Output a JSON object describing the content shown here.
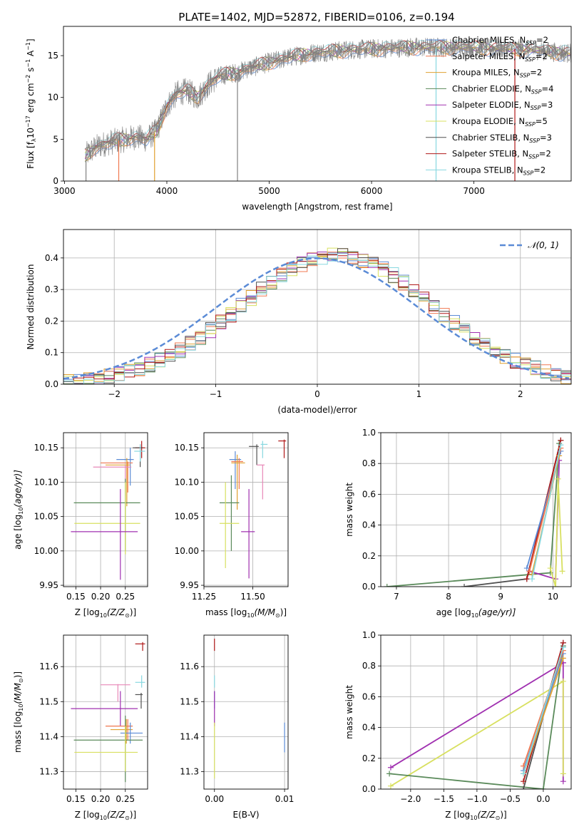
{
  "figure": {
    "title": "PLATE=1402, MJD=52872, FIBERID=0106, z=0.194"
  },
  "colors": {
    "Chabrier MILES": "#5b8bd6",
    "Salpeter MILES": "#f07850",
    "Kroupa MILES": "#e0a030",
    "Chabrier ELODIE": "#5a8a5a",
    "Salpeter ELODIE": "#a030b0",
    "Kroupa ELODIE": "#d8e060",
    "Chabrier STELIB": "#505050",
    "Salpeter STELIB": "#b01818",
    "Kroupa STELIB": "#88d8e0",
    "data": "#808080",
    "normal": "#5b8bd6",
    "extra_pink": "#e888b8"
  },
  "chart_data": [
    {
      "id": "spectrum",
      "type": "line",
      "title": "PLATE=1402, MJD=52872, FIBERID=0106, z=0.194",
      "xlabel": "wavelength [Angstrom, rest frame]",
      "ylabel_main": "Flux [f",
      "ylabel_sub": "λ",
      "ylabel_rest": "10",
      "ylabel_exp1": "−17",
      "ylabel_mid": " erg cm",
      "ylabel_exp2": "−2",
      "ylabel_mid2": " s",
      "ylabel_exp3": "−1",
      "ylabel_end": " A",
      "ylabel_exp4": "−1",
      "ylabel_close": "]",
      "xlim": [
        2990,
        7950
      ],
      "ylim": [
        0,
        18.5
      ],
      "xticks": [
        3000,
        4000,
        5000,
        6000,
        7000
      ],
      "yticks": [
        0,
        5,
        10,
        15
      ],
      "continuum": {
        "x": [
          3200,
          3300,
          3400,
          3500,
          3600,
          3700,
          3800,
          3900,
          4000,
          4100,
          4200,
          4300,
          4400,
          4500,
          4600,
          4700,
          4800,
          4900,
          5000,
          5200,
          5400,
          5600,
          5800,
          6000,
          6200,
          6400,
          6600,
          6800,
          7000,
          7200,
          7400,
          7600,
          7800,
          7950
        ],
        "y": [
          3.0,
          4.0,
          4.5,
          4.8,
          5.0,
          5.3,
          5.0,
          6.0,
          9.0,
          10.5,
          10.8,
          10.0,
          11.5,
          12.5,
          12.8,
          13.0,
          13.5,
          13.8,
          14.2,
          14.8,
          15.3,
          15.5,
          15.7,
          15.8,
          15.9,
          16.0,
          16.0,
          16.0,
          16.0,
          15.9,
          15.8,
          15.7,
          15.4,
          15.3
        ]
      },
      "series": [
        {
          "name": "Chabrier MILES",
          "nssp": "2"
        },
        {
          "name": "Salpeter MILES",
          "nssp": "2"
        },
        {
          "name": "Kroupa MILES",
          "nssp": "2"
        },
        {
          "name": "Chabrier ELODIE",
          "nssp": "4"
        },
        {
          "name": "Salpeter ELODIE",
          "nssp": "3"
        },
        {
          "name": "Kroupa ELODIE",
          "nssp": "5"
        },
        {
          "name": "Chabrier STELIB",
          "nssp": "3"
        },
        {
          "name": "Salpeter STELIB",
          "nssp": "2"
        },
        {
          "name": "Kroupa STELIB",
          "nssp": "2"
        }
      ],
      "legend_prefix": "N",
      "legend_sub": "SSP",
      "legend_placement": "right",
      "grid": false
    },
    {
      "id": "residuals",
      "type": "line",
      "xlabel": "(data-model)/error",
      "ylabel": "Normed distribution",
      "xlim": [
        -2.5,
        2.5
      ],
      "ylim": [
        0,
        0.49
      ],
      "xticks": [
        -2,
        -1,
        0,
        1,
        2
      ],
      "yticks": [
        0.0,
        0.1,
        0.2,
        0.3,
        0.4
      ],
      "legend": "𝒩(0, 1)",
      "legend_placement": "top-right",
      "grid": true
    },
    {
      "id": "age_vs_Z",
      "type": "scatter",
      "xlabel": "Z [log",
      "xlabel_sub": "10",
      "xlabel_rest": "(Z/Z",
      "xlabel_sun": "⊙",
      "xlabel_close": ")]",
      "ylabel": "age  [log",
      "ylabel_sub": "10",
      "ylabel_rest": "(age/yr)]",
      "xlim": [
        0.125,
        0.295
      ],
      "ylim": [
        9.948,
        10.172
      ],
      "xticks": [
        0.15,
        0.2,
        0.25
      ],
      "xticklabels": [
        "0.15",
        "0.20",
        "0.25"
      ],
      "yticks": [
        9.95,
        10.0,
        10.05,
        10.1,
        10.15
      ],
      "yticklabels": [
        "9.95",
        "10.00",
        "10.05",
        "10.10",
        "10.15"
      ],
      "grid": true,
      "points": [
        {
          "s": "Salpeter STELIB",
          "x": 0.283,
          "y": 10.15,
          "xe": [
            0.27,
            0.29
          ],
          "ye": [
            10.135,
            10.16
          ]
        },
        {
          "s": "Chabrier STELIB",
          "x": 0.28,
          "y": 10.15,
          "xe": [
            0.265,
            0.285
          ],
          "ye": [
            10.122,
            10.155
          ]
        },
        {
          "s": "Kroupa STELIB",
          "x": 0.28,
          "y": 10.145,
          "xe": [
            0.268,
            0.29
          ],
          "ye": [
            10.13,
            10.155
          ]
        },
        {
          "s": "Chabrier MILES",
          "x": 0.26,
          "y": 10.133,
          "xe": [
            0.232,
            0.267
          ],
          "ye": [
            10.095,
            10.15
          ]
        },
        {
          "s": "Salpeter MILES",
          "x": 0.255,
          "y": 10.128,
          "xe": [
            0.2,
            0.265
          ],
          "ye": [
            10.085,
            10.13
          ]
        },
        {
          "s": "Kroupa MILES",
          "x": 0.253,
          "y": 10.125,
          "xe": [
            0.21,
            0.26
          ],
          "ye": [
            10.065,
            10.135
          ]
        },
        {
          "s": "extra",
          "x": 0.25,
          "y": 10.122,
          "xe": [
            0.185,
            0.262
          ],
          "ye": [
            10.08,
            10.125
          ]
        },
        {
          "s": "Chabrier ELODIE",
          "x": 0.25,
          "y": 10.07,
          "xe": [
            0.146,
            0.28
          ],
          "ye": [
            10.0,
            10.105
          ]
        },
        {
          "s": "Kroupa ELODIE",
          "x": 0.25,
          "y": 10.04,
          "xe": [
            0.147,
            0.28
          ],
          "ye": [
            9.995,
            10.1
          ]
        },
        {
          "s": "Salpeter ELODIE",
          "x": 0.24,
          "y": 10.028,
          "xe": [
            0.14,
            0.275
          ],
          "ye": [
            9.958,
            10.09
          ]
        }
      ]
    },
    {
      "id": "age_vs_mass",
      "type": "scatter",
      "xlabel": "mass [log",
      "xlabel_sub": "10",
      "xlabel_rest": "(M/M",
      "xlabel_sun": "⊙",
      "xlabel_close": ")]",
      "xlim": [
        11.25,
        11.68
      ],
      "ylim": [
        9.948,
        10.172
      ],
      "xticks": [
        11.25,
        11.5
      ],
      "xticklabels": [
        "11.25",
        "11.50"
      ],
      "yticks": [
        9.95,
        10.0,
        10.05,
        10.1,
        10.15
      ],
      "yticklabels": [
        "9.95",
        "10.00",
        "10.05",
        "10.10",
        "10.15"
      ],
      "grid": true,
      "points": [
        {
          "s": "Salpeter STELIB",
          "x": 11.66,
          "y": 10.16,
          "xe": [
            11.63,
            11.67
          ],
          "ye": [
            10.135,
            10.162
          ]
        },
        {
          "s": "Kroupa STELIB",
          "x": 11.55,
          "y": 10.155,
          "xe": [
            11.54,
            11.575
          ],
          "ye": [
            10.135,
            10.16
          ]
        },
        {
          "s": "Chabrier STELIB",
          "x": 11.52,
          "y": 10.152,
          "xe": [
            11.48,
            11.53
          ],
          "ye": [
            10.125,
            10.155
          ]
        },
        {
          "s": "Chabrier MILES",
          "x": 11.41,
          "y": 10.133,
          "xe": [
            11.38,
            11.44
          ],
          "ye": [
            10.09,
            10.145
          ]
        },
        {
          "s": "Salpeter MILES",
          "x": 11.43,
          "y": 10.13,
          "xe": [
            11.39,
            11.45
          ],
          "ye": [
            10.09,
            10.135
          ]
        },
        {
          "s": "Kroupa MILES",
          "x": 11.42,
          "y": 10.128,
          "xe": [
            11.39,
            11.46
          ],
          "ye": [
            10.06,
            10.14
          ]
        },
        {
          "s": "extra",
          "x": 11.55,
          "y": 10.125,
          "xe": [
            11.52,
            11.56
          ],
          "ye": [
            10.075,
            10.125
          ]
        },
        {
          "s": "Chabrier ELODIE",
          "x": 11.39,
          "y": 10.07,
          "xe": [
            11.33,
            11.43
          ],
          "ye": [
            10.0,
            10.11
          ]
        },
        {
          "s": "Kroupa ELODIE",
          "x": 11.36,
          "y": 10.04,
          "xe": [
            11.33,
            11.43
          ],
          "ye": [
            9.975,
            10.1
          ]
        },
        {
          "s": "Salpeter ELODIE",
          "x": 11.48,
          "y": 10.028,
          "xe": [
            11.44,
            11.51
          ],
          "ye": [
            9.96,
            10.09
          ]
        }
      ]
    },
    {
      "id": "weight_vs_age",
      "type": "line",
      "xlabel": "age  [log",
      "xlabel_sub": "10",
      "xlabel_rest": "(age/yr)]",
      "ylabel": "mass weight",
      "xlim": [
        6.7,
        10.35
      ],
      "ylim": [
        0,
        1.0
      ],
      "xticks": [
        7,
        8,
        9,
        10
      ],
      "yticks": [
        0.0,
        0.2,
        0.4,
        0.6,
        0.8,
        1.0
      ],
      "yticklabels": [
        "0.0",
        "0.2",
        "0.4",
        "0.6",
        "0.8",
        "1.0"
      ],
      "grid": true,
      "series": [
        {
          "s": "Chabrier ELODIE",
          "x": [
            6.82,
            9.95,
            10.12
          ],
          "y": [
            0.0,
            0.09,
            0.93
          ]
        },
        {
          "s": "Chabrier STELIB",
          "x": [
            8.3,
            9.5,
            10.15
          ],
          "y": [
            0.0,
            0.05,
            0.95
          ]
        },
        {
          "s": "Salpeter STELIB",
          "x": [
            9.5,
            10.15
          ],
          "y": [
            0.05,
            0.95
          ]
        },
        {
          "s": "Salpeter ELODIE",
          "x": [
            9.55,
            10.05,
            10.12
          ],
          "y": [
            0.1,
            0.05,
            0.82
          ]
        },
        {
          "s": "Chabrier MILES",
          "x": [
            9.5,
            10.15
          ],
          "y": [
            0.12,
            0.88
          ]
        },
        {
          "s": "Salpeter MILES",
          "x": [
            9.55,
            10.15
          ],
          "y": [
            0.1,
            0.9
          ]
        },
        {
          "s": "Kroupa MILES",
          "x": [
            9.6,
            10.12
          ],
          "y": [
            0.08,
            0.85
          ]
        },
        {
          "s": "Kroupa STELIB",
          "x": [
            9.6,
            10.15
          ],
          "y": [
            0.05,
            0.92
          ]
        },
        {
          "s": "Kroupa ELODIE",
          "x": [
            9.95,
            10.05,
            10.1,
            10.18
          ],
          "y": [
            0.12,
            0.0,
            0.7,
            0.1
          ]
        }
      ]
    },
    {
      "id": "mass_vs_Z",
      "type": "scatter",
      "xlabel": "Z [log",
      "xlabel_sub": "10",
      "xlabel_rest": "(Z/Z",
      "xlabel_sun": "⊙",
      "xlabel_close": ")]",
      "ylabel": "mass [log",
      "ylabel_sub": "10",
      "ylabel_rest": "(M/M",
      "ylabel_sun": "⊙",
      "ylabel_close": ")]",
      "xlim": [
        0.125,
        0.295
      ],
      "ylim": [
        11.25,
        11.69
      ],
      "xticks": [
        0.15,
        0.2,
        0.25
      ],
      "xticklabels": [
        "0.15",
        "0.20",
        "0.25"
      ],
      "yticks": [
        11.3,
        11.4,
        11.5,
        11.6
      ],
      "yticklabels": [
        "11.3",
        "11.4",
        "11.5",
        "11.6"
      ],
      "grid": true,
      "points": [
        {
          "s": "Salpeter STELIB",
          "x": 0.285,
          "y": 11.665,
          "xe": [
            0.27,
            0.29
          ],
          "ye": [
            11.645,
            11.67
          ]
        },
        {
          "s": "Kroupa STELIB",
          "x": 0.283,
          "y": 11.555,
          "xe": [
            0.27,
            0.29
          ],
          "ye": [
            11.54,
            11.575
          ]
        },
        {
          "s": "extra",
          "x": 0.235,
          "y": 11.548,
          "xe": [
            0.2,
            0.26
          ],
          "ye": [
            11.5,
            11.55
          ]
        },
        {
          "s": "Chabrier STELIB",
          "x": 0.282,
          "y": 11.52,
          "xe": [
            0.27,
            0.285
          ],
          "ye": [
            11.48,
            11.525
          ]
        },
        {
          "s": "Salpeter ELODIE",
          "x": 0.24,
          "y": 11.48,
          "xe": [
            0.14,
            0.275
          ],
          "ye": [
            11.43,
            11.53
          ]
        },
        {
          "s": "Salpeter MILES",
          "x": 0.255,
          "y": 11.43,
          "xe": [
            0.21,
            0.265
          ],
          "ye": [
            11.39,
            11.45
          ]
        },
        {
          "s": "Kroupa MILES",
          "x": 0.252,
          "y": 11.42,
          "xe": [
            0.22,
            0.265
          ],
          "ye": [
            11.38,
            11.45
          ]
        },
        {
          "s": "Chabrier MILES",
          "x": 0.26,
          "y": 11.41,
          "xe": [
            0.24,
            0.285
          ],
          "ye": [
            11.38,
            11.44
          ]
        },
        {
          "s": "Chabrier ELODIE",
          "x": 0.25,
          "y": 11.39,
          "xe": [
            0.146,
            0.285
          ],
          "ye": [
            11.27,
            11.46
          ]
        },
        {
          "s": "Kroupa ELODIE",
          "x": 0.25,
          "y": 11.355,
          "xe": [
            0.147,
            0.275
          ],
          "ye": [
            11.3,
            11.43
          ]
        }
      ]
    },
    {
      "id": "mass_vs_ebv",
      "type": "scatter",
      "xlabel": "E(B-V)",
      "xlim": [
        -0.0015,
        0.0105
      ],
      "ylim": [
        11.25,
        11.69
      ],
      "xticks": [
        0.0,
        0.01
      ],
      "xticklabels": [
        "0.00",
        "0.01"
      ],
      "yticks": [
        11.3,
        11.4,
        11.5,
        11.6
      ],
      "yticklabels": [
        "11.3",
        "11.4",
        "11.5",
        "11.6"
      ],
      "grid": true,
      "points": [
        {
          "s": "Salpeter STELIB",
          "x": 0.0,
          "y": 11.665,
          "xe": [
            0.0,
            0.0
          ],
          "ye": [
            11.645,
            11.68
          ]
        },
        {
          "s": "Kroupa STELIB",
          "x": 0.0,
          "y": 11.555,
          "xe": [
            0.0,
            0.0
          ],
          "ye": [
            11.54,
            11.575
          ]
        },
        {
          "s": "Chabrier MILES",
          "x": 0.0,
          "y": 11.52,
          "xe": [
            0.0,
            0.0
          ],
          "ye": [
            11.48,
            11.53
          ]
        },
        {
          "s": "Salpeter ELODIE",
          "x": 0.0,
          "y": 11.48,
          "xe": [
            0.0,
            0.0
          ],
          "ye": [
            11.43,
            11.53
          ]
        },
        {
          "s": "Kroupa ELODIE",
          "x": 0.0,
          "y": 11.36,
          "xe": [
            0.0,
            0.0
          ],
          "ye": [
            11.28,
            11.44
          ]
        },
        {
          "s": "Chabrier MILES",
          "x": 0.01,
          "y": 11.4,
          "xe": [
            0.01,
            0.01
          ],
          "ye": [
            11.355,
            11.44
          ]
        }
      ]
    },
    {
      "id": "weight_vs_Z",
      "type": "line",
      "xlabel": "Z [log",
      "xlabel_sub": "10",
      "xlabel_rest": "(Z/Z",
      "xlabel_sun": "⊙",
      "xlabel_close": ")]",
      "ylabel": "mass weight",
      "xlim": [
        -2.45,
        0.42
      ],
      "ylim": [
        0,
        1.0
      ],
      "xticks": [
        -2.0,
        -1.5,
        -1.0,
        -0.5,
        0.0
      ],
      "xticklabels": [
        "−2.0",
        "−1.5",
        "−1.0",
        "−0.5",
        "0.0"
      ],
      "yticks": [
        0.0,
        0.2,
        0.4,
        0.6,
        0.8,
        1.0
      ],
      "yticklabels": [
        "0.0",
        "0.2",
        "0.4",
        "0.6",
        "0.8",
        "1.0"
      ],
      "grid": true,
      "series": [
        {
          "s": "Salpeter ELODIE",
          "x": [
            -2.3,
            0.3,
            0.3,
            0.3
          ],
          "y": [
            0.14,
            0.82,
            0.05,
            0.82
          ]
        },
        {
          "s": "Kroupa ELODIE",
          "x": [
            -2.3,
            0.3,
            0.3
          ],
          "y": [
            0.02,
            0.7,
            0.1
          ]
        },
        {
          "s": "Chabrier ELODIE",
          "x": [
            -2.32,
            0.0,
            0.3
          ],
          "y": [
            0.1,
            0.0,
            0.93
          ]
        },
        {
          "s": "Chabrier STELIB",
          "x": [
            -0.3,
            0.3
          ],
          "y": [
            0.0,
            0.95
          ]
        },
        {
          "s": "Salpeter STELIB",
          "x": [
            -0.3,
            0.3
          ],
          "y": [
            0.05,
            0.95
          ]
        },
        {
          "s": "Chabrier MILES",
          "x": [
            -0.3,
            0.3
          ],
          "y": [
            0.12,
            0.88
          ]
        },
        {
          "s": "Salpeter MILES",
          "x": [
            -0.3,
            0.3
          ],
          "y": [
            0.15,
            0.9
          ]
        },
        {
          "s": "Kroupa MILES",
          "x": [
            -0.3,
            0.3
          ],
          "y": [
            0.1,
            0.85
          ]
        },
        {
          "s": "Kroupa STELIB",
          "x": [
            -0.3,
            0.3
          ],
          "y": [
            0.1,
            0.92
          ]
        }
      ]
    }
  ]
}
